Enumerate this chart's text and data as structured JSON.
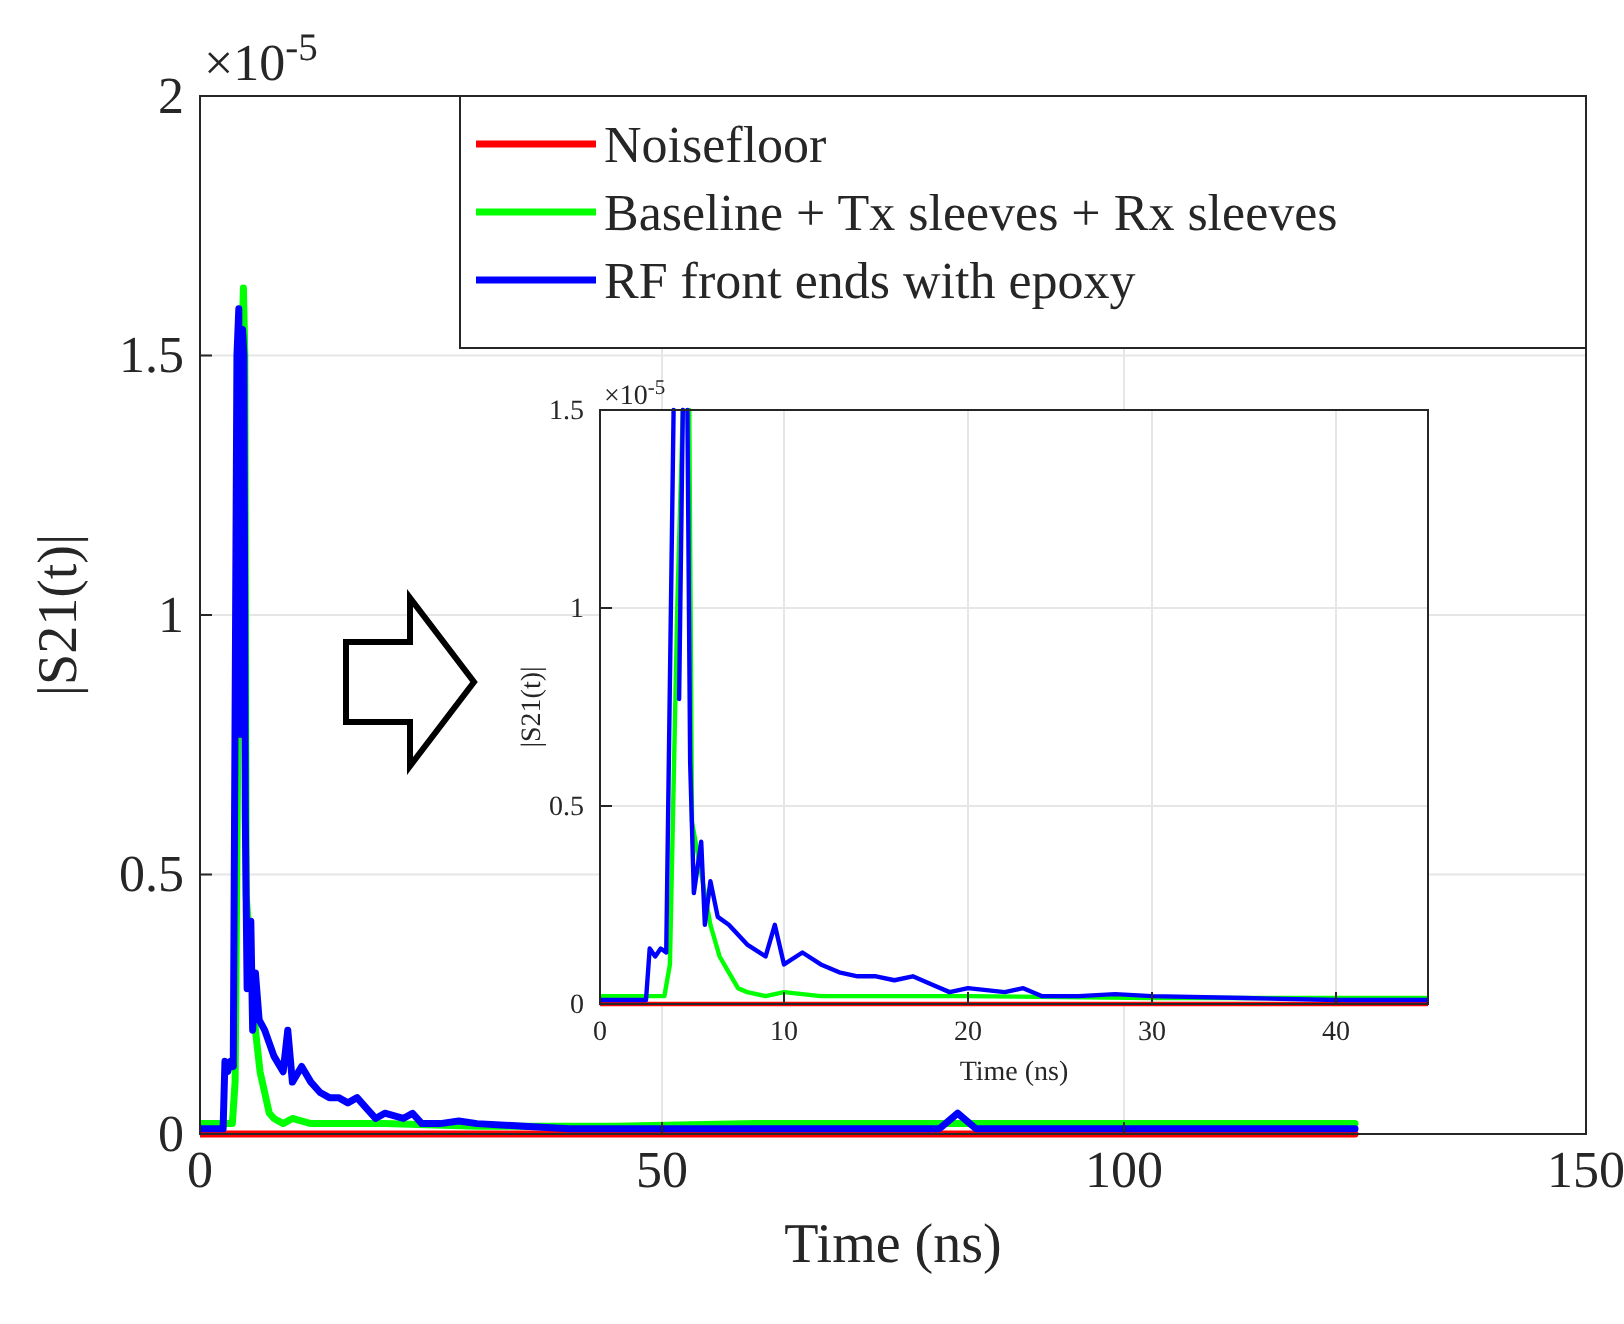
{
  "chart_data": [
    {
      "type": "line",
      "xlabel": "Time (ns)",
      "ylabel": "|S21(t)|",
      "annotations": [
        "×10$^{-5}$"
      ],
      "xlim": [
        0,
        150
      ],
      "xticks": [
        0,
        50,
        100,
        150
      ],
      "ylim": [
        0,
        2
      ],
      "yticks": [
        0,
        0.5,
        1,
        1.5,
        2
      ],
      "grid": true,
      "legend": "top right",
      "series": [
        {
          "name": "Noisefloor",
          "color": "#ff0000",
          "x": [
            0,
            125
          ],
          "values": [
            0,
            0
          ]
        },
        {
          "name": "Baseline + Tx sleeves + Rx sleeves",
          "color": "#00ff00",
          "x": [
            0,
            3.5,
            3.8,
            4.2,
            4.5,
            4.7,
            4.85,
            5.0,
            6.0,
            6.5,
            7,
            7.5,
            8,
            9,
            10,
            12,
            15,
            20,
            30,
            45,
            60,
            80,
            100,
            125
          ],
          "values": [
            0.02,
            0.02,
            0.1,
            1.0,
            1.5,
            1.63,
            1.5,
            0.46,
            0.2,
            0.12,
            0.08,
            0.04,
            0.03,
            0.02,
            0.03,
            0.02,
            0.02,
            0.02,
            0.015,
            0.015,
            0.02,
            0.02,
            0.02,
            0.02
          ]
        },
        {
          "name": "RF front ends with epoxy",
          "color": "#0000ff",
          "x": [
            0,
            2.5,
            2.7,
            3.0,
            3.3,
            3.6,
            4.0,
            4.2,
            4.3,
            4.5,
            4.6,
            4.75,
            4.9,
            5.1,
            5.5,
            5.7,
            6.0,
            6.4,
            7,
            8,
            9,
            9.5,
            10,
            11,
            12,
            13,
            14,
            15,
            16,
            17,
            18,
            19,
            20,
            22,
            23,
            24,
            26,
            28,
            30,
            35,
            40,
            45,
            60,
            80,
            82,
            84,
            100,
            125
          ],
          "values": [
            0.01,
            0.01,
            0.14,
            0.12,
            0.14,
            0.13,
            1.5,
            1.59,
            0.77,
            1.5,
            1.55,
            1.5,
            0.61,
            0.28,
            0.41,
            0.2,
            0.31,
            0.22,
            0.2,
            0.15,
            0.12,
            0.2,
            0.1,
            0.13,
            0.1,
            0.08,
            0.07,
            0.07,
            0.06,
            0.07,
            0.05,
            0.03,
            0.04,
            0.03,
            0.04,
            0.02,
            0.02,
            0.025,
            0.02,
            0.015,
            0.01,
            0.01,
            0.01,
            0.01,
            0.04,
            0.01,
            0.01,
            0.01
          ]
        }
      ]
    },
    {
      "type": "line",
      "xlabel": "Time (ns)",
      "ylabel": "|S21(t)|",
      "annotations": [
        "×10$^{-5}$"
      ],
      "xlim": [
        0,
        45
      ],
      "xticks": [
        0,
        10,
        20,
        30,
        40
      ],
      "ylim": [
        0,
        1.5
      ],
      "yticks": [
        0,
        0.5,
        1,
        1.5
      ],
      "grid": true,
      "series": [
        {
          "color": "#ff0000",
          "x": [
            0,
            45
          ],
          "values": [
            0,
            0
          ]
        },
        {
          "color": "#00ff00",
          "x": [
            0,
            3.5,
            3.8,
            4.2,
            4.5,
            4.7,
            4.85,
            5.0,
            6.0,
            6.5,
            7,
            7.5,
            8,
            9,
            10,
            12,
            15,
            20,
            30,
            45
          ],
          "values": [
            0.02,
            0.02,
            0.1,
            1.0,
            1.5,
            null,
            1.5,
            0.46,
            0.2,
            0.12,
            0.08,
            0.04,
            0.03,
            0.02,
            0.03,
            0.02,
            0.02,
            0.02,
            0.015,
            0.015
          ]
        },
        {
          "color": "#0000ff",
          "x": [
            0,
            2.5,
            2.7,
            3.0,
            3.3,
            3.6,
            4.0,
            4.2,
            4.3,
            4.5,
            4.6,
            4.75,
            4.9,
            5.1,
            5.5,
            5.7,
            6.0,
            6.4,
            7,
            8,
            9,
            9.5,
            10,
            11,
            12,
            13,
            14,
            15,
            16,
            17,
            18,
            19,
            20,
            22,
            23,
            24,
            26,
            28,
            30,
            35,
            40,
            45
          ],
          "values": [
            0.01,
            0.01,
            0.14,
            0.12,
            0.14,
            0.13,
            1.5,
            null,
            0.77,
            1.5,
            null,
            1.5,
            0.61,
            0.28,
            0.41,
            0.2,
            0.31,
            0.22,
            0.2,
            0.15,
            0.12,
            0.2,
            0.1,
            0.13,
            0.1,
            0.08,
            0.07,
            0.07,
            0.06,
            0.07,
            0.05,
            0.03,
            0.04,
            0.03,
            0.04,
            0.02,
            0.02,
            0.025,
            0.02,
            0.015,
            0.01,
            0.01
          ]
        }
      ]
    }
  ]
}
